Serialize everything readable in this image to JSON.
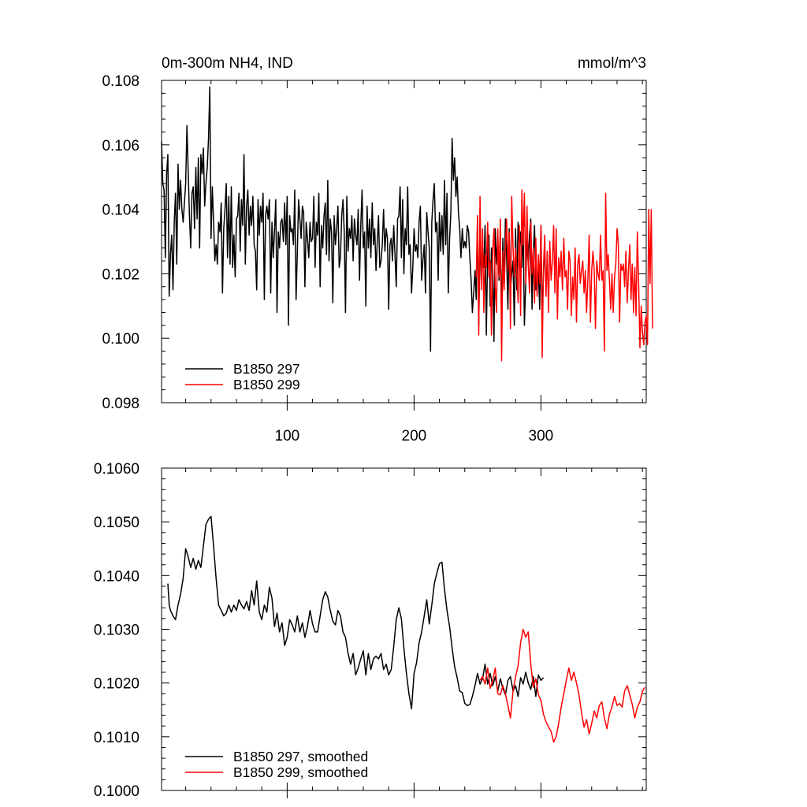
{
  "chart_data": [
    {
      "type": "line",
      "title_left": "0m-300m NH4, IND",
      "title_right": "mmol/m^3",
      "xlim": [
        1,
        383
      ],
      "ylim": [
        0.098,
        0.108
      ],
      "x_ticks": [
        100,
        200,
        300
      ],
      "x_tick_labels": [
        "100",
        "200",
        "300"
      ],
      "y_ticks": [
        0.098,
        0.1,
        0.102,
        0.104,
        0.106,
        0.108
      ],
      "y_tick_labels": [
        "0.098",
        "0.100",
        "0.102",
        "0.104",
        "0.106",
        "0.108"
      ],
      "legend_position": "bottom-left",
      "series": [
        {
          "name": "B1850 297",
          "color": "#000000",
          "x_start": 1,
          "values": [
            0.1061,
            0.1048,
            0.1046,
            0.1025,
            0.1051,
            0.1057,
            0.1013,
            0.1026,
            0.1032,
            0.1015,
            0.1036,
            0.1045,
            0.1023,
            0.1054,
            0.104,
            0.1049,
            0.104,
            0.1036,
            0.1042,
            0.1048,
            0.1066,
            0.1052,
            0.1038,
            0.1028,
            0.1045,
            0.1047,
            0.1034,
            0.1053,
            0.1037,
            0.1056,
            0.1028,
            0.1057,
            0.1051,
            0.1059,
            0.1041,
            0.1048,
            0.1053,
            0.1062,
            0.1078,
            0.1031,
            0.1047,
            0.1036,
            0.1024,
            0.1029,
            0.1023,
            0.1036,
            0.1033,
            0.1042,
            0.1014,
            0.1034,
            0.104,
            0.1048,
            0.1025,
            0.1044,
            0.1023,
            0.1047,
            0.1022,
            0.1032,
            0.1019,
            0.1037,
            0.1038,
            0.1045,
            0.1027,
            0.1043,
            0.1035,
            0.1057,
            0.1023,
            0.1041,
            0.1046,
            0.1032,
            0.1041,
            0.1035,
            0.1044,
            0.1029,
            0.1027,
            0.1015,
            0.1043,
            0.1032,
            0.1041,
            0.1036,
            0.1045,
            0.1012,
            0.1038,
            0.1041,
            0.1037,
            0.1043,
            0.1014,
            0.1036,
            0.1025,
            0.1033,
            0.1043,
            0.1008,
            0.1033,
            0.1028,
            0.1036,
            0.1037,
            0.103,
            0.1042,
            0.1029,
            0.1044,
            0.1004,
            0.1038,
            0.1033,
            0.1034,
            0.1029,
            0.1046,
            0.1012,
            0.1027,
            0.1043,
            0.1037,
            0.1031,
            0.1041,
            0.1039,
            0.1016,
            0.1036,
            0.1031,
            0.1025,
            0.1036,
            0.103,
            0.1031,
            0.1044,
            0.1022,
            0.1036,
            0.1032,
            0.1045,
            0.1016,
            0.1035,
            0.1028,
            0.1038,
            0.1042,
            0.1026,
            0.1049,
            0.1024,
            0.1037,
            0.1033,
            0.1011,
            0.1038,
            0.1029,
            0.1034,
            0.1041,
            0.1022,
            0.1025,
            0.1038,
            0.1043,
            0.1033,
            0.1008,
            0.1044,
            0.1027,
            0.1034,
            0.1031,
            0.1038,
            0.1024,
            0.1037,
            0.1032,
            0.1029,
            0.104,
            0.1018,
            0.1035,
            0.1046,
            0.1028,
            0.1033,
            0.101,
            0.1041,
            0.1028,
            0.1037,
            0.1025,
            0.1042,
            0.1029,
            0.1034,
            0.1021,
            0.103,
            0.1038,
            0.1022,
            0.1024,
            0.1029,
            0.104,
            0.1027,
            0.1034,
            0.1031,
            0.1009,
            0.1029,
            0.1031,
            0.1024,
            0.1035,
            0.1026,
            0.1016,
            0.1037,
            0.1038,
            0.1047,
            0.1025,
            0.1043,
            0.102,
            0.1034,
            0.1029,
            0.1047,
            0.1026,
            0.1029,
            0.1014,
            0.1022,
            0.1034,
            0.1027,
            0.1029,
            0.1025,
            0.1036,
            0.1041,
            0.1018,
            0.1024,
            0.1029,
            0.1014,
            0.1039,
            0.1033,
            0.1028,
            0.0996,
            0.1036,
            0.1043,
            0.1048,
            0.1033,
            0.1036,
            0.1018,
            0.1039,
            0.1027,
            0.1038,
            0.1026,
            0.1049,
            0.1029,
            0.1045,
            0.1014,
            0.1031,
            0.1039,
            0.1062,
            0.1049,
            0.1056,
            0.1044,
            0.105,
            0.1039,
            0.1034,
            0.1025,
            0.1034,
            0.1028,
            0.103,
            0.1028,
            0.1035,
            0.1033,
            0.1025,
            0.1018,
            0.1008,
            0.1014,
            0.1021,
            0.1012,
            0.1038,
            0.1004,
            0.1032,
            0.1018,
            0.1026,
            0.1022,
            0.1035,
            0.1001,
            0.1027,
            0.1032,
            0.101,
            0.1028,
            0.1024,
            0.0999,
            0.1034,
            0.1023,
            0.1031,
            0.1018,
            0.1027,
            0.1006,
            0.1031,
            0.1016,
            0.1037,
            0.1025,
            0.1009,
            0.1034,
            0.1015,
            0.102,
            0.1024,
            0.1004,
            0.1034,
            0.1015,
            0.1036,
            0.1028,
            0.1033,
            0.1022,
            0.1036,
            0.1004,
            0.1017,
            0.1031,
            0.1023,
            0.1032,
            0.1037,
            0.1009,
            0.1027,
            0.1035,
            0.1015,
            0.1018,
            0.1021,
            0.1009,
            0.1035,
            0.1007,
            0.102,
            0.1028
          ]
        },
        {
          "name": "B1850 299",
          "color": "#ff0000",
          "x_start": 249,
          "values": [
            0.1019,
            0.1038,
            0.1001,
            0.1044,
            0.1015,
            0.1034,
            0.1008,
            0.1026,
            0.1022,
            0.1036,
            0.1019,
            0.1024,
            0.1001,
            0.1027,
            0.1034,
            0.1016,
            0.1008,
            0.1034,
            0.1019,
            0.1037,
            0.0993,
            0.1027,
            0.1015,
            0.1028,
            0.1037,
            0.1021,
            0.1033,
            0.1003,
            0.1044,
            0.1028,
            0.1019,
            0.1028,
            0.1021,
            0.1011,
            0.1035,
            0.1007,
            0.1046,
            0.1029,
            0.1045,
            0.1017,
            0.1041,
            0.1023,
            0.1014,
            0.1036,
            0.102,
            0.1028,
            0.1011,
            0.1031,
            0.1013,
            0.1026,
            0.1017,
            0.1035,
            0.0994,
            0.1022,
            0.1032,
            0.1013,
            0.1027,
            0.1008,
            0.103,
            0.1018,
            0.1024,
            0.1035,
            0.1014,
            0.1034,
            0.1006,
            0.1025,
            0.1019,
            0.1027,
            0.1015,
            0.1031,
            0.1019,
            0.1021,
            0.1009,
            0.1027,
            0.1024,
            0.1007,
            0.1019,
            0.1012,
            0.1028,
            0.1005,
            0.1023,
            0.1026,
            0.1017,
            0.1021,
            0.1024,
            0.1014,
            0.1021,
            0.1008,
            0.1018,
            0.1032,
            0.1005,
            0.1021,
            0.1027,
            0.1021,
            0.1003,
            0.1024,
            0.102,
            0.1018,
            0.1032,
            0.1018,
            0.1021,
            0.0996,
            0.1045,
            0.1021,
            0.1026,
            0.1018,
            0.1009,
            0.102,
            0.1008,
            0.1019,
            0.1023,
            0.1034,
            0.1029,
            0.1005,
            0.1023,
            0.1021,
            0.1023,
            0.1016,
            0.1027,
            0.1011,
            0.1021,
            0.1029,
            0.1012,
            0.1023,
            0.1008,
            0.1022,
            0.1007,
            0.1033,
            0.1018,
            0.0997,
            0.101,
            0.1002,
            0.0998,
            0.1005,
            0.1007,
            0.0998,
            0.104,
            0.1017,
            0.104,
            0.1003
          ]
        }
      ]
    },
    {
      "type": "line",
      "xlim": [
        1,
        383
      ],
      "ylim": [
        0.1,
        0.106
      ],
      "x_ticks": [
        100,
        200,
        300
      ],
      "y_ticks": [
        0.1,
        0.101,
        0.102,
        0.103,
        0.104,
        0.105,
        0.106
      ],
      "y_tick_labels": [
        "0.1000",
        "0.1010",
        "0.1020",
        "0.1030",
        "0.1040",
        "0.1050",
        "0.1060"
      ],
      "legend_position": "bottom-left",
      "series": [
        {
          "name": "B1850 297, smoothed",
          "color": "#000000",
          "x": [
            6,
            7,
            8,
            10,
            12,
            14,
            16,
            18,
            20,
            22,
            24,
            26,
            28,
            30,
            32,
            34,
            36,
            38,
            40,
            42,
            44,
            46,
            48,
            50,
            52,
            54,
            56,
            58,
            60,
            62,
            64,
            66,
            68,
            70,
            72,
            74,
            76,
            78,
            80,
            82,
            84,
            86,
            88,
            90,
            92,
            94,
            96,
            98,
            100,
            102,
            104,
            106,
            108,
            110,
            112,
            114,
            116,
            118,
            120,
            122,
            124,
            126,
            128,
            130,
            132,
            134,
            136,
            138,
            140,
            142,
            144,
            146,
            148,
            150,
            152,
            154,
            156,
            158,
            160,
            162,
            164,
            166,
            168,
            170,
            172,
            174,
            176,
            178,
            180,
            182,
            184,
            186,
            188,
            190,
            192,
            194,
            196,
            198,
            200,
            202,
            204,
            206,
            208,
            210,
            212,
            214,
            216,
            218,
            220,
            222,
            224,
            226,
            228,
            230,
            232,
            234,
            236,
            238,
            240,
            242,
            244,
            246,
            248,
            250,
            252,
            254,
            256,
            258,
            260,
            262,
            264,
            266,
            268,
            270,
            272,
            274,
            276,
            278,
            280,
            282,
            284,
            286,
            288,
            290,
            292,
            294,
            296,
            298,
            300,
            302
          ],
          "values": [
            0.10385,
            0.10345,
            0.10335,
            0.10325,
            0.10318,
            0.10345,
            0.10365,
            0.10395,
            0.1045,
            0.10435,
            0.10415,
            0.10432,
            0.10412,
            0.10428,
            0.10415,
            0.10455,
            0.10495,
            0.10505,
            0.1051,
            0.10455,
            0.10395,
            0.10345,
            0.10335,
            0.10325,
            0.1033,
            0.10345,
            0.10332,
            0.10345,
            0.10335,
            0.10355,
            0.10345,
            0.10338,
            0.10352,
            0.10335,
            0.10372,
            0.10345,
            0.1039,
            0.10332,
            0.10318,
            0.10345,
            0.10332,
            0.10378,
            0.10358,
            0.10305,
            0.1033,
            0.10295,
            0.10312,
            0.1027,
            0.10285,
            0.10318,
            0.10308,
            0.10295,
            0.10325,
            0.10295,
            0.10312,
            0.10285,
            0.10305,
            0.10335,
            0.1031,
            0.10295,
            0.10295,
            0.10325,
            0.10355,
            0.1037,
            0.1036,
            0.10335,
            0.10315,
            0.10308,
            0.10335,
            0.10325,
            0.10295,
            0.10285,
            0.10255,
            0.10235,
            0.10255,
            0.10215,
            0.10228,
            0.10245,
            0.1026,
            0.10215,
            0.10255,
            0.10225,
            0.10245,
            0.1025,
            0.10245,
            0.10255,
            0.10225,
            0.10235,
            0.10215,
            0.10225,
            0.10268,
            0.10318,
            0.1034,
            0.1032,
            0.10265,
            0.10218,
            0.1018,
            0.10152,
            0.10218,
            0.10238,
            0.10275,
            0.10295,
            0.10325,
            0.10355,
            0.1031,
            0.10345,
            0.10385,
            0.10405,
            0.10422,
            0.10425,
            0.10375,
            0.10335,
            0.10305,
            0.10265,
            0.1023,
            0.1021,
            0.10185,
            0.10182,
            0.10162,
            0.10158,
            0.1016,
            0.10175,
            0.10195,
            0.10218,
            0.10198,
            0.10208,
            0.10235,
            0.10198,
            0.10218,
            0.10195,
            0.10212,
            0.10185,
            0.10208,
            0.1019,
            0.10178,
            0.10205,
            0.10212,
            0.10185,
            0.10195,
            0.10175,
            0.1021,
            0.10198,
            0.1022,
            0.102,
            0.10188,
            0.10212,
            0.10175,
            0.10215,
            0.10205,
            0.1021
          ]
        },
        {
          "name": "B1850 299, smoothed",
          "color": "#ff0000",
          "x": [
            252,
            254,
            256,
            258,
            260,
            262,
            264,
            266,
            268,
            270,
            272,
            274,
            276,
            278,
            280,
            282,
            284,
            286,
            288,
            290,
            292,
            294,
            296,
            298,
            300,
            302,
            304,
            306,
            308,
            310,
            312,
            314,
            316,
            318,
            320,
            322,
            324,
            326,
            328,
            330,
            332,
            334,
            336,
            338,
            340,
            342,
            344,
            346,
            348,
            350,
            352,
            354,
            356,
            358,
            360,
            362,
            364,
            366,
            368,
            370,
            372,
            374,
            376,
            378,
            380,
            382
          ],
          "values": [
            0.10205,
            0.10212,
            0.10198,
            0.10228,
            0.1019,
            0.10205,
            0.10228,
            0.1018,
            0.10178,
            0.10195,
            0.1018,
            0.10158,
            0.10135,
            0.10185,
            0.10212,
            0.10232,
            0.10275,
            0.103,
            0.10285,
            0.10295,
            0.10235,
            0.10192,
            0.10208,
            0.10178,
            0.10168,
            0.10142,
            0.10128,
            0.10118,
            0.1011,
            0.1009,
            0.101,
            0.10125,
            0.10155,
            0.1018,
            0.10205,
            0.10228,
            0.10205,
            0.1022,
            0.102,
            0.10178,
            0.10145,
            0.10118,
            0.10132,
            0.10105,
            0.10125,
            0.10148,
            0.10135,
            0.10158,
            0.10165,
            0.10135,
            0.10115,
            0.10142,
            0.10155,
            0.10175,
            0.10158,
            0.10162,
            0.10155,
            0.10185,
            0.10195,
            0.10178,
            0.1016,
            0.10135,
            0.10155,
            0.10165,
            0.10185,
            0.10192
          ]
        }
      ]
    }
  ]
}
